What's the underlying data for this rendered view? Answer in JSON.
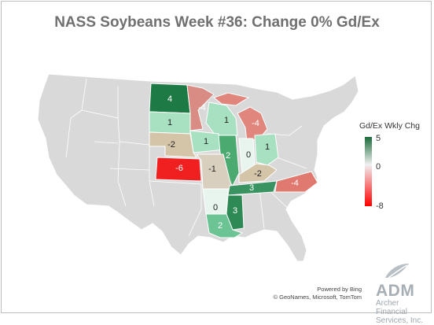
{
  "title": "NASS Soybeans Week #36: Change 0% Gd/Ex",
  "legend": {
    "title": "Gd/Ex Wkly Chg",
    "max_label": "5",
    "mid_label": "0",
    "min_label": "-8",
    "colors": {
      "high": "#1a6b3a",
      "mid": "#f0f0f0",
      "low": "#ff0000"
    }
  },
  "states": [
    {
      "name": "North Dakota",
      "value": "4"
    },
    {
      "name": "Minnesota",
      "value": "-4"
    },
    {
      "name": "South Dakota",
      "value": "1"
    },
    {
      "name": "Wisconsin",
      "value": "1"
    },
    {
      "name": "Michigan",
      "value": "-4"
    },
    {
      "name": "Iowa",
      "value": "1"
    },
    {
      "name": "Nebraska",
      "value": "-2"
    },
    {
      "name": "Illinois",
      "value": "2"
    },
    {
      "name": "Indiana",
      "value": "0"
    },
    {
      "name": "Ohio",
      "value": "1"
    },
    {
      "name": "Kansas",
      "value": "-6"
    },
    {
      "name": "Missouri",
      "value": "-1"
    },
    {
      "name": "Kentucky",
      "value": "-2"
    },
    {
      "name": "Tennessee",
      "value": "3"
    },
    {
      "name": "North Carolina",
      "value": "-4"
    },
    {
      "name": "Arkansas",
      "value": "0"
    },
    {
      "name": "Mississippi",
      "value": "3"
    },
    {
      "name": "Louisiana",
      "value": "2"
    }
  ],
  "attribution": {
    "line1": "Powered by Bing",
    "line2": "© GeoNames, Microsoft, TomTom"
  },
  "logo": {
    "name": "ADM",
    "sub1": "Archer Financial",
    "sub2": "Services, Inc."
  }
}
